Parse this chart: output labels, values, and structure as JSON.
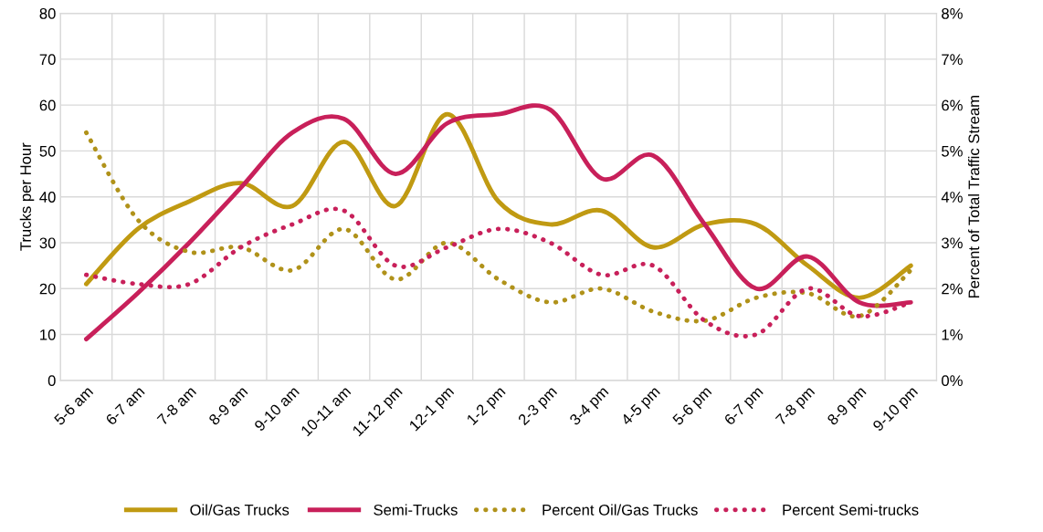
{
  "chart_data": {
    "type": "line",
    "categories": [
      "5-6 am",
      "6-7 am",
      "7-8 am",
      "8-9 am",
      "9-10 am",
      "10-11 am",
      "11-12 pm",
      "12-1 pm",
      "1-2 pm",
      "2-3 pm",
      "3-4 pm",
      "4-5 pm",
      "5-6 pm",
      "6-7 pm",
      "7-8 pm",
      "8-9 pm",
      "9-10 pm"
    ],
    "series": [
      {
        "name": "Oil/Gas Trucks",
        "color": "#c09a12",
        "line_style": "solid",
        "values": [
          21,
          33,
          39,
          43,
          38,
          52,
          38,
          58,
          39,
          34,
          37,
          29,
          34,
          34,
          25,
          18,
          25
        ]
      },
      {
        "name": "Semi-Trucks",
        "color": "#c8205a",
        "line_style": "solid",
        "values": [
          9,
          19,
          30,
          42,
          54,
          57,
          45,
          56,
          58,
          59,
          44,
          49,
          34,
          20,
          27,
          17,
          17
        ]
      },
      {
        "name": "Percent Oil/Gas Trucks",
        "color": "#b0921a",
        "line_style": "dotted",
        "axis": "y2",
        "values": [
          5.4,
          3.5,
          2.8,
          2.9,
          2.4,
          3.3,
          2.2,
          3.0,
          2.2,
          1.7,
          2.0,
          1.5,
          1.3,
          1.8,
          1.9,
          1.4,
          2.4
        ]
      },
      {
        "name": "Percent Semi-trucks",
        "color": "#c8205a",
        "line_style": "dotted",
        "axis": "y2",
        "values": [
          2.3,
          2.1,
          2.1,
          2.9,
          3.4,
          3.7,
          2.5,
          2.9,
          3.3,
          3.0,
          2.3,
          2.5,
          1.3,
          1.0,
          2.0,
          1.4,
          1.7
        ]
      }
    ],
    "ylabel": "Trucks per Hour",
    "y2label": "Percent of Total Traffic Stream",
    "ylim": [
      0,
      80
    ],
    "yticks": [
      0,
      10,
      20,
      30,
      40,
      50,
      60,
      70,
      80
    ],
    "y2lim": [
      0,
      8
    ],
    "y2ticks": [
      {
        "value": 0,
        "label": "0%"
      },
      {
        "value": 1,
        "label": "1%"
      },
      {
        "value": 2,
        "label": "2%"
      },
      {
        "value": 3,
        "label": "3%"
      },
      {
        "value": 4,
        "label": "4%"
      },
      {
        "value": 5,
        "label": "5%"
      },
      {
        "value": 6,
        "label": "6%"
      },
      {
        "value": 7,
        "label": "7%"
      },
      {
        "value": 8,
        "label": "8%"
      }
    ],
    "grid": true,
    "legend": "bottom"
  }
}
